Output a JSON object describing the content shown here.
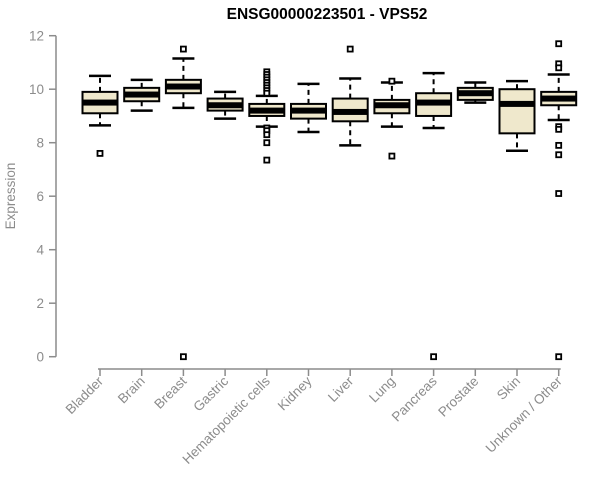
{
  "chart_data": {
    "type": "boxplot",
    "title": "ENSG00000223501 - VPS52",
    "ylabel": "Expression",
    "xlabel": "",
    "ylim": [
      0,
      12
    ],
    "yticks": [
      0,
      2,
      4,
      6,
      8,
      10,
      12
    ],
    "grid": false,
    "legend": false,
    "categories": [
      "Bladder",
      "Brain",
      "Breast",
      "Gastric",
      "Hematopoietic cells",
      "Kidney",
      "Liver",
      "Lung",
      "Pancreas",
      "Prostate",
      "Skin",
      "Unknown / Other"
    ],
    "series": [
      {
        "name": "Bladder",
        "whisker_low": 8.65,
        "q1": 9.1,
        "median": 9.5,
        "q3": 9.9,
        "whisker_high": 10.5,
        "outliers": [
          7.6
        ]
      },
      {
        "name": "Brain",
        "whisker_low": 9.2,
        "q1": 9.55,
        "median": 9.8,
        "q3": 10.05,
        "whisker_high": 10.35,
        "outliers": []
      },
      {
        "name": "Breast",
        "whisker_low": 9.3,
        "q1": 9.85,
        "median": 10.1,
        "q3": 10.35,
        "whisker_high": 11.15,
        "outliers": [
          11.5,
          0
        ]
      },
      {
        "name": "Gastric",
        "whisker_low": 8.9,
        "q1": 9.2,
        "median": 9.4,
        "q3": 9.65,
        "whisker_high": 9.9,
        "outliers": []
      },
      {
        "name": "Hematopoietic cells",
        "whisker_low": 8.6,
        "q1": 9.0,
        "median": 9.2,
        "q3": 9.45,
        "whisker_high": 9.75,
        "outliers": [
          10.65,
          10.55,
          10.45,
          10.35,
          10.25,
          10.15,
          10.05,
          9.95,
          9.85,
          8.55,
          8.45,
          8.3,
          8.0,
          7.35
        ]
      },
      {
        "name": "Kidney",
        "whisker_low": 8.4,
        "q1": 8.9,
        "median": 9.2,
        "q3": 9.45,
        "whisker_high": 10.2,
        "outliers": []
      },
      {
        "name": "Liver",
        "whisker_low": 7.9,
        "q1": 8.8,
        "median": 9.15,
        "q3": 9.65,
        "whisker_high": 10.4,
        "outliers": [
          11.5
        ]
      },
      {
        "name": "Lung",
        "whisker_low": 8.6,
        "q1": 9.1,
        "median": 9.4,
        "q3": 9.6,
        "whisker_high": 10.25,
        "outliers": [
          10.3,
          7.5
        ]
      },
      {
        "name": "Pancreas",
        "whisker_low": 8.55,
        "q1": 9.0,
        "median": 9.5,
        "q3": 9.85,
        "whisker_high": 10.6,
        "outliers": [
          0
        ]
      },
      {
        "name": "Prostate",
        "whisker_low": 9.5,
        "q1": 9.6,
        "median": 9.85,
        "q3": 10.05,
        "whisker_high": 10.25,
        "outliers": []
      },
      {
        "name": "Skin",
        "whisker_low": 7.7,
        "q1": 8.35,
        "median": 9.45,
        "q3": 10.0,
        "whisker_high": 10.3,
        "outliers": []
      },
      {
        "name": "Unknown / Other",
        "whisker_low": 8.85,
        "q1": 9.4,
        "median": 9.65,
        "q3": 9.9,
        "whisker_high": 10.55,
        "outliers": [
          11.7,
          10.95,
          10.8,
          8.6,
          8.5,
          7.9,
          7.55,
          6.1,
          0
        ]
      }
    ],
    "colors": {
      "box_fill": "#efe8cc",
      "box_border": "#000000",
      "median": "#000000",
      "whisker": "#000000",
      "outlier_border": "#000000",
      "outlier_fill": "#ffffff",
      "axis": "#8c8c8c",
      "tick_text": "#8c8c8c",
      "title_text": "#000000",
      "background": "#ffffff"
    }
  }
}
